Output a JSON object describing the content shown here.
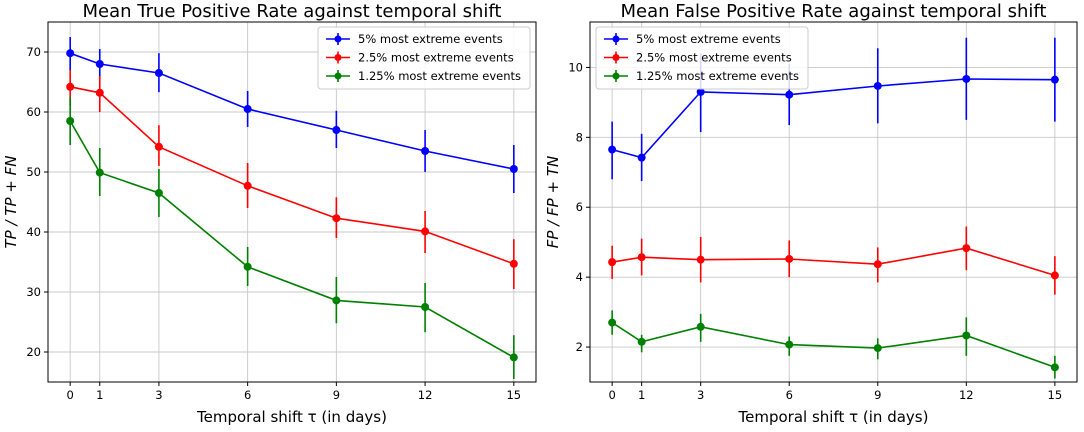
{
  "chart_data": [
    {
      "type": "line",
      "title": "Mean True Positive Rate against temporal shift",
      "xlabel": "Temporal shift τ (in days)",
      "ylabel": "TP / TP + FN",
      "x": [
        0,
        1,
        3,
        6,
        9,
        12,
        15
      ],
      "x_ticks": [
        0,
        1,
        3,
        6,
        9,
        12,
        15
      ],
      "y_ticks": [
        20,
        30,
        40,
        50,
        60,
        70
      ],
      "xlim": [
        -0.75,
        15.75
      ],
      "ylim": [
        15,
        75
      ],
      "grid": true,
      "legend_position": "top-right",
      "series": [
        {
          "name": "5% most extreme events",
          "color": "#0000ff",
          "values": [
            69.8,
            68.0,
            66.5,
            60.5,
            57.0,
            53.5,
            50.5
          ],
          "err_low": [
            67.0,
            65.5,
            63.3,
            57.5,
            54.0,
            50.0,
            46.5
          ],
          "err_high": [
            72.5,
            70.5,
            69.8,
            63.5,
            60.2,
            57.0,
            54.5
          ]
        },
        {
          "name": "2.5% most extreme events",
          "color": "#ff0000",
          "values": [
            64.2,
            63.2,
            54.2,
            47.7,
            42.3,
            40.1,
            34.7
          ],
          "err_low": [
            61.0,
            60.0,
            51.0,
            44.0,
            39.0,
            36.5,
            30.5
          ],
          "err_high": [
            67.0,
            66.0,
            57.8,
            51.5,
            45.8,
            43.5,
            38.8
          ]
        },
        {
          "name": "1.25% most extreme events",
          "color": "#008000",
          "values": [
            58.5,
            49.9,
            46.5,
            34.2,
            28.6,
            27.5,
            19.1
          ],
          "err_low": [
            54.5,
            46.0,
            42.5,
            31.0,
            24.8,
            23.3,
            15.5
          ],
          "err_high": [
            62.5,
            54.0,
            50.5,
            37.5,
            32.5,
            31.5,
            22.8
          ]
        }
      ]
    },
    {
      "type": "line",
      "title": "Mean False Positive Rate against temporal shift",
      "xlabel": "Temporal shift τ (in days)",
      "ylabel": "FP / FP + TN",
      "x": [
        0,
        1,
        3,
        6,
        9,
        12,
        15
      ],
      "x_ticks": [
        0,
        1,
        3,
        6,
        9,
        12,
        15
      ],
      "y_ticks": [
        2,
        4,
        6,
        8,
        10
      ],
      "xlim": [
        -0.75,
        15.75
      ],
      "ylim": [
        1.0,
        11.3
      ],
      "grid": true,
      "legend_position": "top-left",
      "series": [
        {
          "name": "5% most extreme events",
          "color": "#0000ff",
          "values": [
            7.65,
            7.42,
            9.3,
            9.22,
            9.47,
            9.67,
            9.65
          ],
          "err_low": [
            6.8,
            6.75,
            8.15,
            8.35,
            8.4,
            8.5,
            8.45
          ],
          "err_high": [
            8.45,
            8.1,
            10.4,
            10.1,
            10.55,
            10.85,
            10.85
          ]
        },
        {
          "name": "2.5% most extreme events",
          "color": "#ff0000",
          "values": [
            4.43,
            4.57,
            4.5,
            4.52,
            4.37,
            4.83,
            4.05
          ],
          "err_low": [
            3.95,
            4.05,
            3.85,
            4.0,
            3.85,
            4.2,
            3.5
          ],
          "err_high": [
            4.9,
            5.1,
            5.15,
            5.05,
            4.85,
            5.45,
            4.6
          ]
        },
        {
          "name": "1.25% most extreme events",
          "color": "#008000",
          "values": [
            2.7,
            2.15,
            2.58,
            2.07,
            1.97,
            2.33,
            1.42
          ],
          "err_low": [
            2.35,
            1.85,
            2.15,
            1.75,
            1.65,
            1.75,
            1.1
          ],
          "err_high": [
            3.05,
            2.35,
            2.95,
            2.3,
            2.25,
            2.85,
            1.75
          ]
        }
      ]
    }
  ]
}
